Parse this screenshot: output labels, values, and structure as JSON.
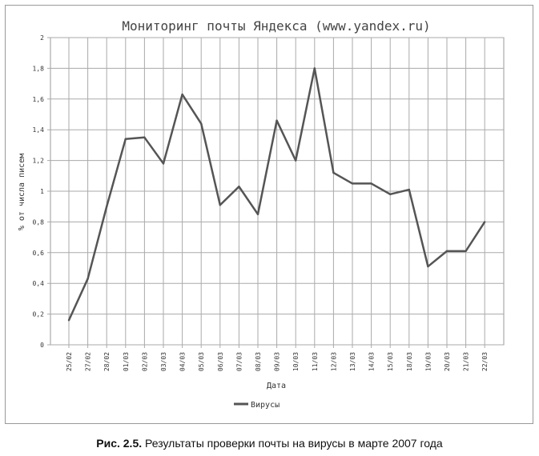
{
  "chart_data": {
    "type": "line",
    "title": "Мониторинг почты Яндекса (www.yandex.ru)",
    "xlabel": "Дата",
    "ylabel": "% от числа писем",
    "ylim": [
      0,
      2
    ],
    "yticks": [
      "0",
      "0,2",
      "0,4",
      "0,6",
      "0,8",
      "1",
      "1,2",
      "1,4",
      "1,6",
      "1,8",
      "2"
    ],
    "grid": true,
    "legend_position": "bottom",
    "categories": [
      "25/02",
      "27/02",
      "28/02",
      "01/03",
      "02/03",
      "03/03",
      "04/03",
      "05/03",
      "06/03",
      "07/03",
      "08/03",
      "09/03",
      "10/03",
      "11/03",
      "12/03",
      "13/03",
      "14/03",
      "15/03",
      "18/03",
      "19/03",
      "20/03",
      "21/03",
      "22/03"
    ],
    "series": [
      {
        "name": "Вирусы",
        "color": "#555555",
        "values": [
          0.16,
          0.43,
          0.9,
          1.34,
          1.35,
          1.18,
          1.63,
          1.44,
          0.91,
          1.03,
          0.85,
          1.46,
          1.2,
          1.8,
          1.12,
          1.05,
          1.05,
          0.98,
          1.01,
          0.51,
          0.61,
          0.61,
          0.8
        ]
      }
    ]
  },
  "caption": {
    "label": "Рис. 2.5.",
    "text": " Результаты проверки почты на вирусы в марте 2007 года"
  }
}
